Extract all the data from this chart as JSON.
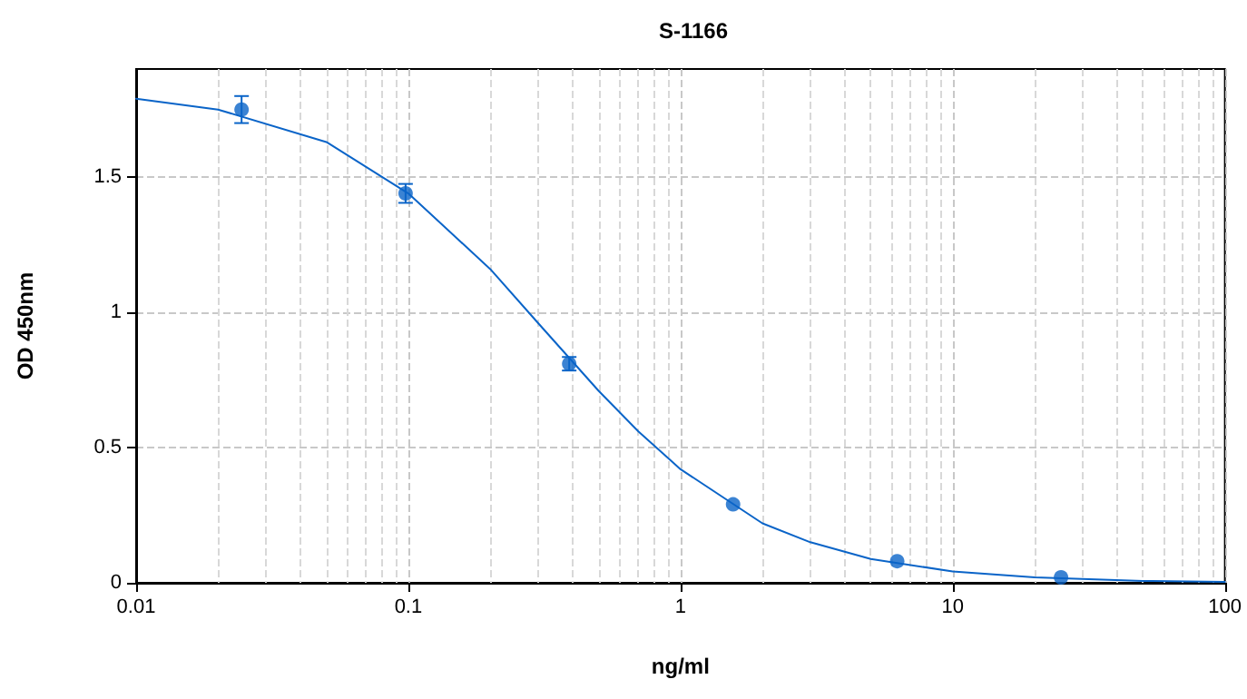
{
  "chart_data": {
    "type": "scatter",
    "title": "S-1166",
    "xlabel": "ng/ml",
    "ylabel": "OD 450nm",
    "log": "x",
    "grid": true,
    "marker": "circle",
    "xlim": [
      0.01,
      100
    ],
    "xticks": [
      0.01,
      0.1,
      1,
      10,
      100
    ],
    "ylim": [
      0,
      1.9
    ],
    "yticks": [
      0,
      0.5,
      1,
      1.5
    ],
    "series": [
      {
        "color": "#0a64c8",
        "x": [
          0.0244,
          0.0977,
          0.39,
          1.56,
          6.25,
          25
        ],
        "values": [
          1.75,
          1.44,
          0.81,
          0.29,
          0.08,
          0.02
        ],
        "errors": [
          0.05,
          0.035,
          0.025,
          null,
          null,
          null
        ]
      },
      {
        "type": "line",
        "color": "#0a64c8",
        "marker": "none",
        "line_style": "solid",
        "x": [
          0.01,
          0.02,
          0.05,
          0.1,
          0.2,
          0.3,
          0.5,
          0.7,
          1,
          2,
          3,
          5,
          10,
          20,
          50,
          100
        ],
        "values": [
          1.79,
          1.75,
          1.63,
          1.44,
          1.16,
          0.96,
          0.71,
          0.56,
          0.42,
          0.22,
          0.15,
          0.088,
          0.042,
          0.02,
          0.007,
          0.003
        ]
      }
    ]
  }
}
